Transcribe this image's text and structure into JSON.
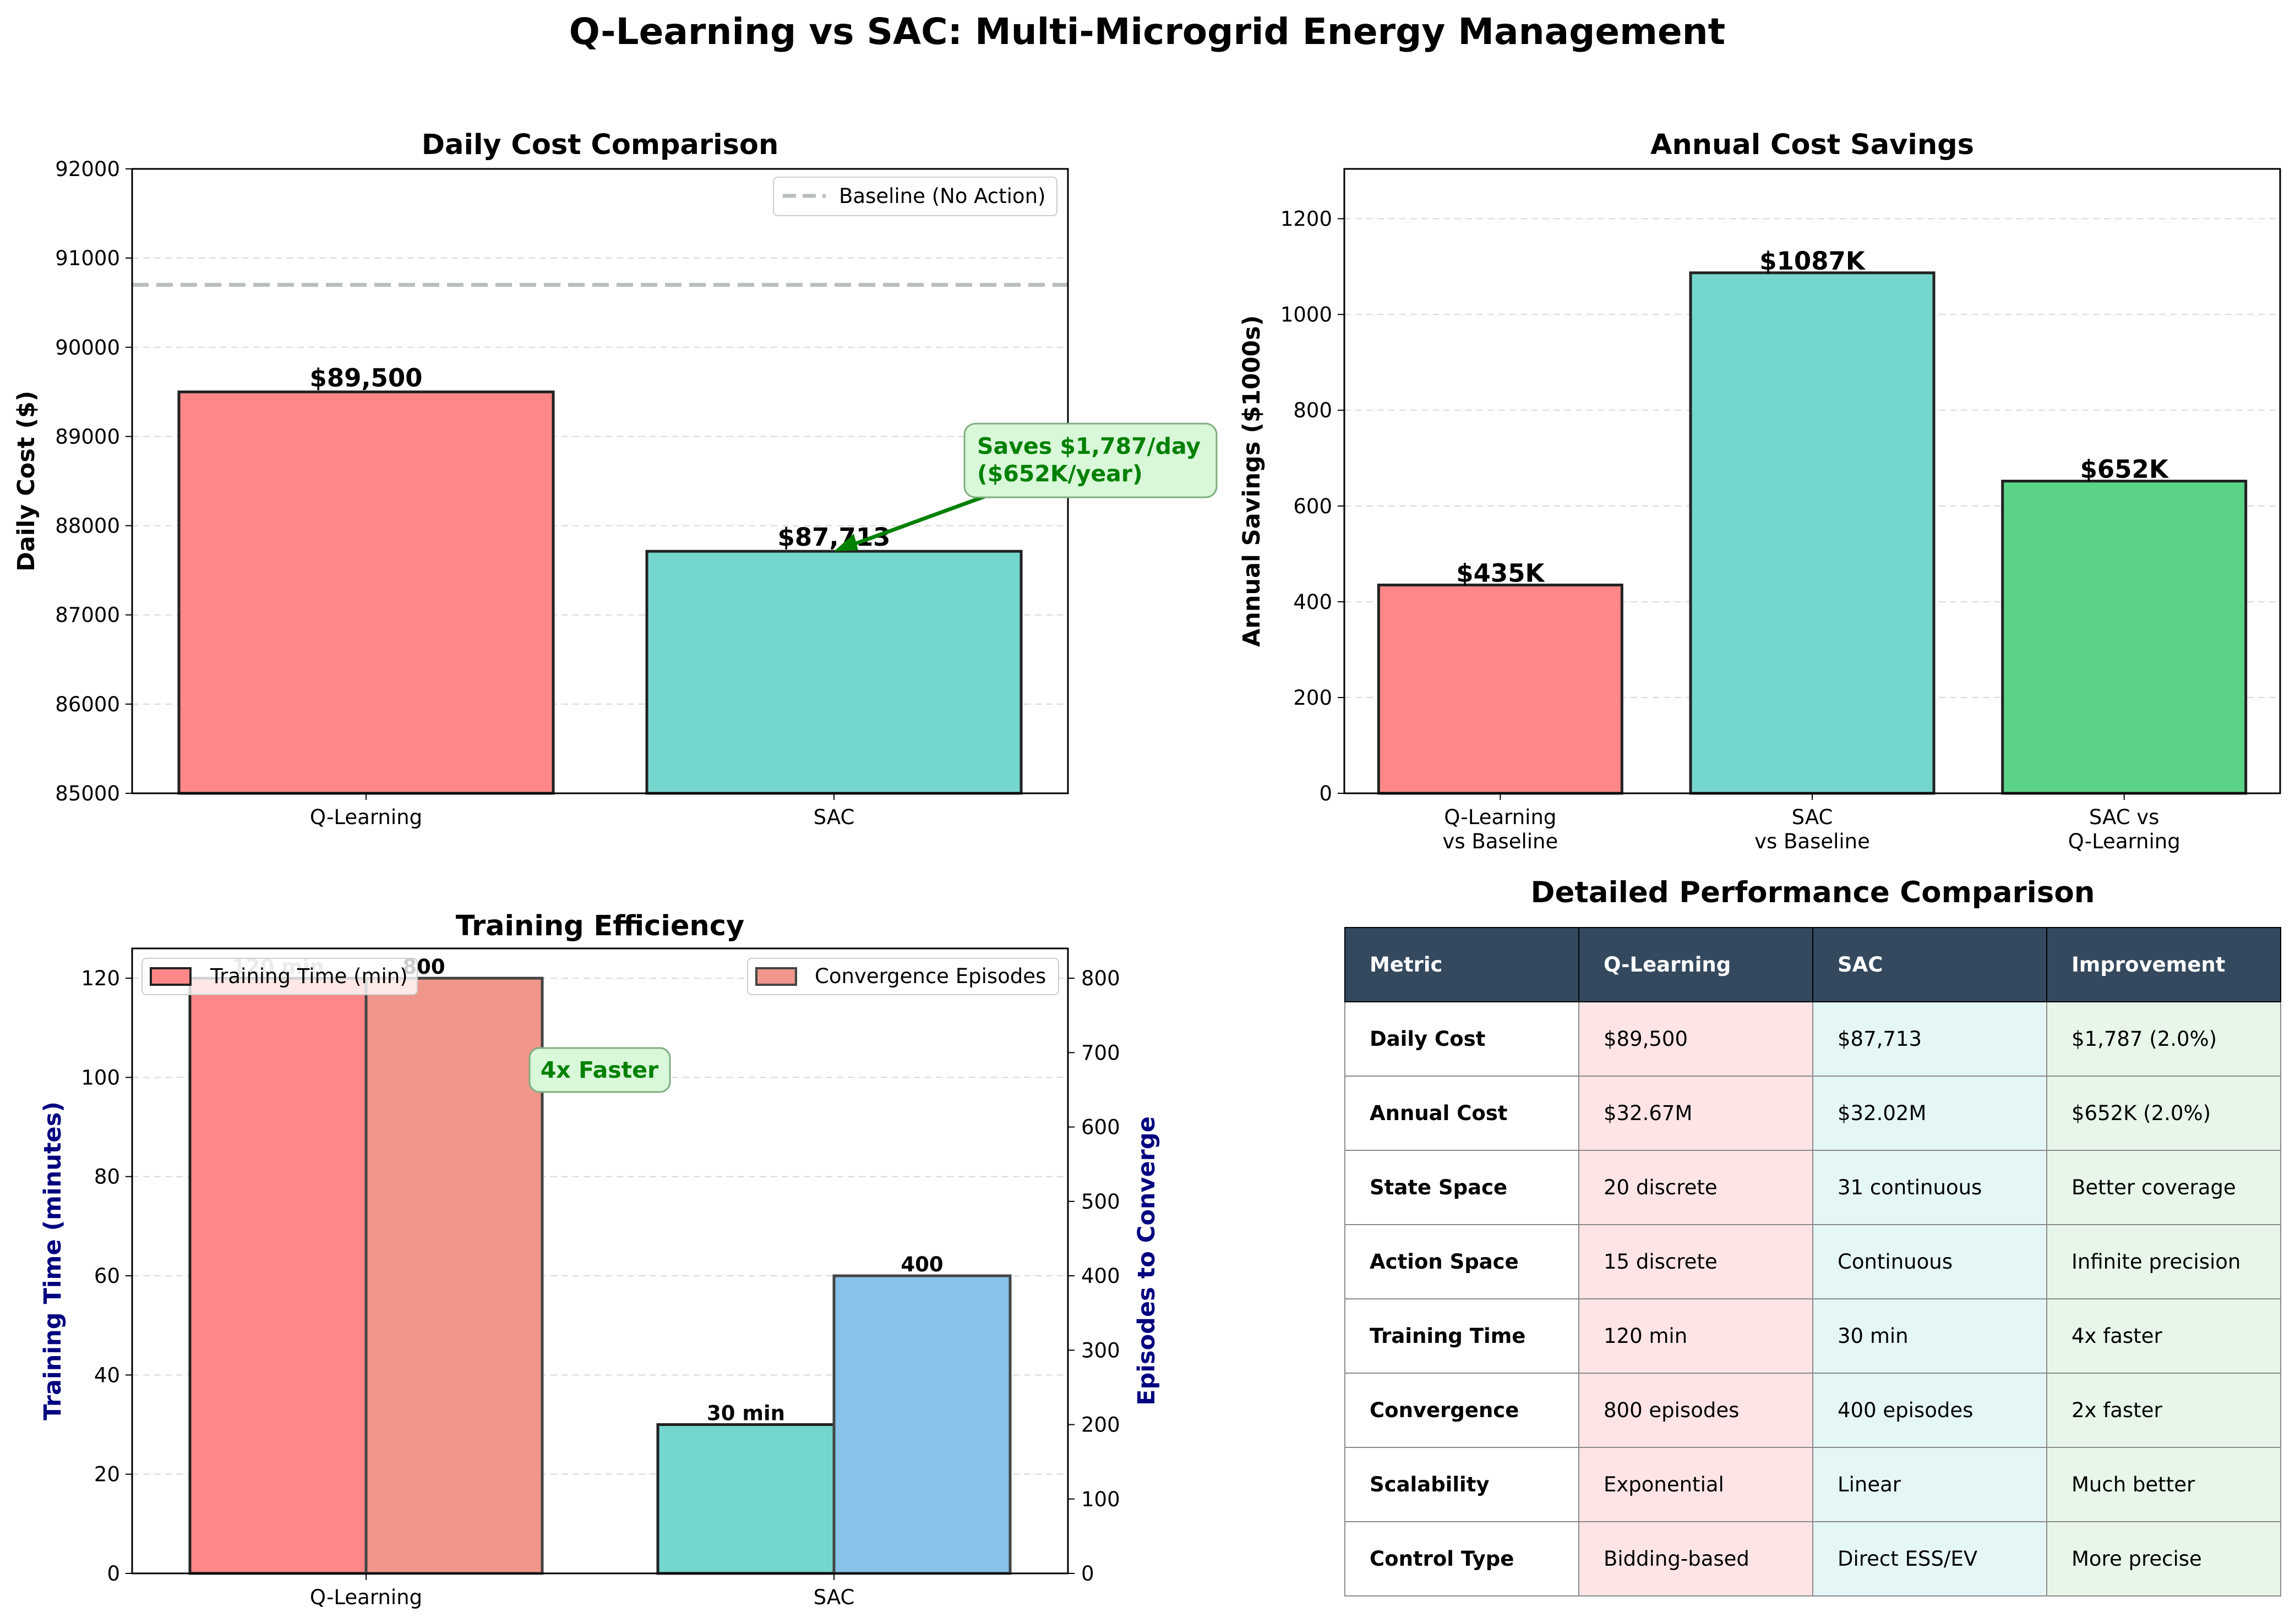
{
  "figure": {
    "suptitle": "Q-Learning vs SAC: Multi-Microgrid Energy Management"
  },
  "chart_data": [
    {
      "type": "bar",
      "title": "Daily Cost Comparison",
      "ylabel": "Daily Cost ($)",
      "categories": [
        "Q-Learning",
        "SAC"
      ],
      "values": [
        89500,
        87713
      ],
      "value_labels": [
        "$89,500",
        "$87,713"
      ],
      "colors": [
        "#ff8787",
        "#74d6cd"
      ],
      "ylim": [
        85000,
        92000
      ],
      "yticks": [
        85000,
        86000,
        87000,
        88000,
        89000,
        90000,
        91000,
        92000
      ],
      "baseline": {
        "value": 90700,
        "label": "Baseline (No Action)",
        "color": "#b8bdbe"
      },
      "annotation": {
        "lines": [
          "Saves $1,787/day",
          "($652K/year)"
        ],
        "color": "#008000",
        "points_to": {
          "category": "SAC",
          "value": 87713
        }
      },
      "legend_position": "upper right",
      "grid": "y-dashed"
    },
    {
      "type": "bar",
      "title": "Annual Cost Savings",
      "ylabel": "Annual Savings ($1000s)",
      "categories": [
        [
          "Q-Learning",
          "vs Baseline"
        ],
        [
          "SAC",
          "vs Baseline"
        ],
        [
          "SAC vs",
          "Q-Learning"
        ]
      ],
      "values": [
        435,
        1087,
        652
      ],
      "value_labels": [
        "$435K",
        "$1087K",
        "$652K"
      ],
      "colors": [
        "#ff8787",
        "#74d6cd",
        "#5ad387"
      ],
      "ylim": [
        0,
        1304
      ],
      "yticks": [
        0,
        200,
        400,
        600,
        800,
        1000,
        1200
      ],
      "grid": "y-dashed"
    },
    {
      "type": "bar",
      "title": "Training Efficiency",
      "ylabel_left": "Training Time (minutes)",
      "ylabel_right": "Episodes to Converge",
      "categories": [
        "Q-Learning",
        "SAC"
      ],
      "series": [
        {
          "name": "Training Time (min)",
          "values": [
            120,
            30
          ],
          "value_labels": [
            "120 min",
            "30 min"
          ],
          "colors": [
            "#ff8787",
            "#74d6cd"
          ],
          "axis": "left"
        },
        {
          "name": "Convergence Episodes",
          "values": [
            800,
            400
          ],
          "value_labels": [
            "800",
            "400"
          ],
          "colors": [
            "#f0968a",
            "#88c2e9"
          ],
          "axis": "right"
        }
      ],
      "ylim_left": [
        0,
        126
      ],
      "yticks_left": [
        0,
        20,
        40,
        60,
        80,
        100,
        120
      ],
      "ylim_right": [
        0,
        840
      ],
      "yticks_right": [
        0,
        100,
        200,
        300,
        400,
        500,
        600,
        700,
        800
      ],
      "annotation": {
        "text": "4x Faster",
        "color": "#008000"
      },
      "grid": "y-dashed"
    },
    {
      "type": "table",
      "title": "Detailed Performance Comparison",
      "columns": [
        "Metric",
        "Q-Learning",
        "SAC",
        "Improvement"
      ],
      "rows": [
        [
          "Daily Cost",
          "$89,500",
          "$87,713",
          "$1,787 (2.0%)"
        ],
        [
          "Annual Cost",
          "$32.67M",
          "$32.02M",
          "$652K (2.0%)"
        ],
        [
          "State Space",
          "20 discrete",
          "31 continuous",
          "Better coverage"
        ],
        [
          "Action Space",
          "15 discrete",
          "Continuous",
          "Infinite precision"
        ],
        [
          "Training Time",
          "120 min",
          "30 min",
          "4x faster"
        ],
        [
          "Convergence",
          "800 episodes",
          "400 episodes",
          "2x faster"
        ],
        [
          "Scalability",
          "Exponential",
          "Linear",
          "Much better"
        ],
        [
          "Control Type",
          "Bidding-based",
          "Direct ESS/EV",
          "More precise"
        ]
      ]
    }
  ]
}
